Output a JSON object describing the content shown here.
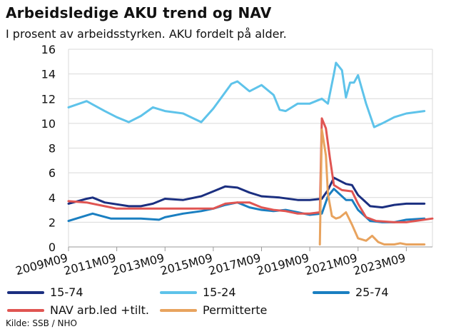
{
  "title": "Arbeidsledige AKU trend og NAV",
  "subtitle": "I prosent av arbeidsstyrken. AKU fordelt på alder.",
  "source": "Kilde: SSB / NHO",
  "chart_data": {
    "type": "line",
    "title": "Arbeidsledige AKU trend og NAV",
    "subtitle": "I prosent av arbeidsstyrken. AKU fordelt på alder.",
    "ylim": [
      0,
      16
    ],
    "yticks": [
      0,
      2,
      4,
      6,
      8,
      10,
      12,
      14,
      16
    ],
    "xlim": [
      "2009-09",
      "2024-10"
    ],
    "xtick_labels": [
      "2009M09",
      "2011M09",
      "2013M09",
      "2015M09",
      "2017M09",
      "2019M09",
      "2021M09",
      "2023M09"
    ],
    "grid": "horizontal",
    "legend_position": "bottom",
    "series": [
      {
        "name": "15-74",
        "color": "#1b2f80",
        "points": [
          [
            "2009-09",
            3.5
          ],
          [
            "2010-06",
            3.9
          ],
          [
            "2010-09",
            4.0
          ],
          [
            "2011-03",
            3.6
          ],
          [
            "2012-03",
            3.3
          ],
          [
            "2012-09",
            3.3
          ],
          [
            "2013-03",
            3.5
          ],
          [
            "2013-09",
            3.9
          ],
          [
            "2014-06",
            3.8
          ],
          [
            "2015-03",
            4.1
          ],
          [
            "2015-09",
            4.5
          ],
          [
            "2016-03",
            4.9
          ],
          [
            "2016-09",
            4.8
          ],
          [
            "2017-03",
            4.4
          ],
          [
            "2017-09",
            4.1
          ],
          [
            "2018-06",
            4.0
          ],
          [
            "2019-03",
            3.8
          ],
          [
            "2019-09",
            3.8
          ],
          [
            "2020-03",
            3.9
          ],
          [
            "2020-06",
            4.6
          ],
          [
            "2020-09",
            5.6
          ],
          [
            "2021-03",
            5.1
          ],
          [
            "2021-06",
            5.0
          ],
          [
            "2021-09",
            4.2
          ],
          [
            "2022-03",
            3.3
          ],
          [
            "2022-09",
            3.2
          ],
          [
            "2023-03",
            3.4
          ],
          [
            "2023-09",
            3.5
          ],
          [
            "2024-06",
            3.5
          ]
        ]
      },
      {
        "name": "15-24",
        "color": "#5ec3ea",
        "points": [
          [
            "2009-09",
            11.3
          ],
          [
            "2010-06",
            11.8
          ],
          [
            "2011-03",
            11.0
          ],
          [
            "2011-09",
            10.5
          ],
          [
            "2012-03",
            10.1
          ],
          [
            "2012-09",
            10.6
          ],
          [
            "2013-03",
            11.3
          ],
          [
            "2013-09",
            11.0
          ],
          [
            "2014-06",
            10.8
          ],
          [
            "2015-03",
            10.1
          ],
          [
            "2015-09",
            11.2
          ],
          [
            "2016-06",
            13.2
          ],
          [
            "2016-09",
            13.4
          ],
          [
            "2017-03",
            12.6
          ],
          [
            "2017-09",
            13.1
          ],
          [
            "2018-03",
            12.3
          ],
          [
            "2018-06",
            11.1
          ],
          [
            "2018-09",
            11.0
          ],
          [
            "2019-03",
            11.6
          ],
          [
            "2019-09",
            11.6
          ],
          [
            "2020-03",
            12.0
          ],
          [
            "2020-06",
            11.6
          ],
          [
            "2020-09",
            14.0
          ],
          [
            "2020-10",
            14.9
          ],
          [
            "2021-01",
            14.3
          ],
          [
            "2021-03",
            12.1
          ],
          [
            "2021-05",
            13.3
          ],
          [
            "2021-07",
            13.3
          ],
          [
            "2021-09",
            13.9
          ],
          [
            "2022-01",
            11.6
          ],
          [
            "2022-05",
            9.7
          ],
          [
            "2022-09",
            10.0
          ],
          [
            "2023-03",
            10.5
          ],
          [
            "2023-09",
            10.8
          ],
          [
            "2024-06",
            11.0
          ]
        ]
      },
      {
        "name": "25-74",
        "color": "#1a7fc1",
        "points": [
          [
            "2009-09",
            2.1
          ],
          [
            "2010-09",
            2.7
          ],
          [
            "2011-06",
            2.3
          ],
          [
            "2012-03",
            2.3
          ],
          [
            "2012-09",
            2.3
          ],
          [
            "2013-06",
            2.2
          ],
          [
            "2013-09",
            2.4
          ],
          [
            "2014-06",
            2.7
          ],
          [
            "2015-03",
            2.9
          ],
          [
            "2015-09",
            3.1
          ],
          [
            "2016-03",
            3.4
          ],
          [
            "2016-09",
            3.6
          ],
          [
            "2017-03",
            3.2
          ],
          [
            "2017-09",
            3.0
          ],
          [
            "2018-03",
            2.9
          ],
          [
            "2018-09",
            3.0
          ],
          [
            "2019-03",
            2.8
          ],
          [
            "2019-09",
            2.6
          ],
          [
            "2020-03",
            2.7
          ],
          [
            "2020-06",
            4.1
          ],
          [
            "2020-09",
            4.7
          ],
          [
            "2021-03",
            3.8
          ],
          [
            "2021-06",
            3.8
          ],
          [
            "2021-09",
            3.0
          ],
          [
            "2022-03",
            2.1
          ],
          [
            "2022-09",
            2.0
          ],
          [
            "2023-03",
            2.0
          ],
          [
            "2023-09",
            2.2
          ],
          [
            "2024-06",
            2.3
          ]
        ]
      },
      {
        "name": "NAV arb.led +tilt.",
        "color": "#e05552",
        "points": [
          [
            "2009-09",
            3.7
          ],
          [
            "2010-06",
            3.6
          ],
          [
            "2011-03",
            3.3
          ],
          [
            "2011-09",
            3.1
          ],
          [
            "2012-09",
            3.1
          ],
          [
            "2013-09",
            3.1
          ],
          [
            "2014-09",
            3.1
          ],
          [
            "2015-09",
            3.1
          ],
          [
            "2016-03",
            3.5
          ],
          [
            "2016-09",
            3.6
          ],
          [
            "2017-03",
            3.6
          ],
          [
            "2017-09",
            3.2
          ],
          [
            "2018-03",
            3.0
          ],
          [
            "2018-09",
            2.9
          ],
          [
            "2019-03",
            2.7
          ],
          [
            "2019-09",
            2.7
          ],
          [
            "2020-02",
            2.8
          ],
          [
            "2020-03",
            10.4
          ],
          [
            "2020-05",
            9.6
          ],
          [
            "2020-07",
            7.2
          ],
          [
            "2020-09",
            5.0
          ],
          [
            "2021-01",
            4.6
          ],
          [
            "2021-06",
            4.5
          ],
          [
            "2021-09",
            3.5
          ],
          [
            "2022-01",
            2.4
          ],
          [
            "2022-06",
            2.1
          ],
          [
            "2023-03",
            2.0
          ],
          [
            "2023-09",
            2.0
          ],
          [
            "2024-10",
            2.3
          ]
        ]
      },
      {
        "name": "Permitterte",
        "color": "#e8a35e",
        "points": [
          [
            "2020-02",
            0.2
          ],
          [
            "2020-03",
            9.5
          ],
          [
            "2020-05",
            7.4
          ],
          [
            "2020-06",
            4.3
          ],
          [
            "2020-08",
            2.5
          ],
          [
            "2020-10",
            2.3
          ],
          [
            "2020-12",
            2.4
          ],
          [
            "2021-03",
            2.8
          ],
          [
            "2021-06",
            1.8
          ],
          [
            "2021-09",
            0.7
          ],
          [
            "2022-01",
            0.5
          ],
          [
            "2022-04",
            0.9
          ],
          [
            "2022-07",
            0.4
          ],
          [
            "2022-10",
            0.2
          ],
          [
            "2023-03",
            0.2
          ],
          [
            "2023-06",
            0.3
          ],
          [
            "2023-09",
            0.2
          ],
          [
            "2024-06",
            0.2
          ]
        ]
      }
    ]
  }
}
